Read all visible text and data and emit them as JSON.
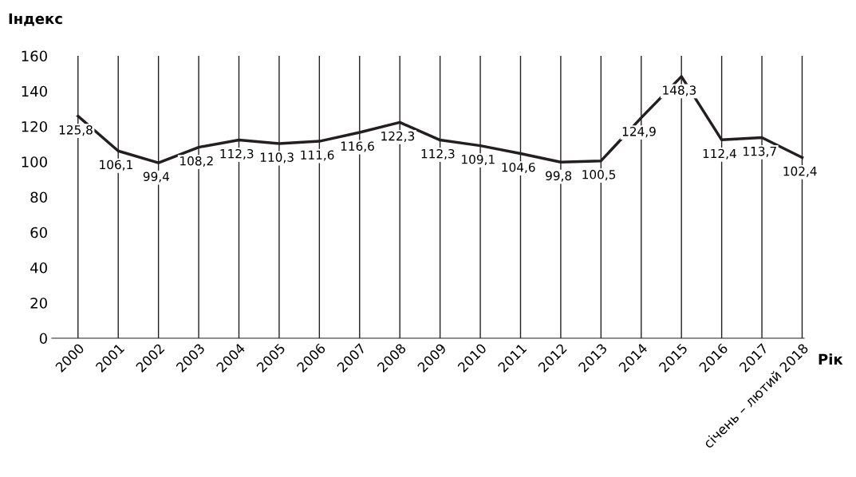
{
  "chart_data": {
    "type": "line",
    "ylabel": "Індекс",
    "xlabel": "Рік",
    "categories": [
      "2000",
      "2001",
      "2002",
      "2003",
      "2004",
      "2005",
      "2006",
      "2007",
      "2008",
      "2009",
      "2010",
      "2011",
      "2012",
      "2013",
      "2014",
      "2015",
      "2016",
      "2017",
      "січень – лютий 2018"
    ],
    "series": [
      {
        "color": "#231f20",
        "values": [
          125.8,
          106.1,
          99.4,
          108.2,
          112.3,
          110.3,
          111.6,
          116.6,
          122.3,
          112.3,
          109.1,
          104.6,
          99.8,
          100.5,
          124.9,
          148.3,
          112.4,
          113.7,
          102.4
        ],
        "value_labels": [
          "125,8",
          "106,1",
          "99,4",
          "108,2",
          "112,3",
          "110,3",
          "111,6",
          "116,6",
          "122,3",
          "112,3",
          "109,1",
          "104,6",
          "99,8",
          "100,5",
          "124,9",
          "148,3",
          "112,4",
          "113,7",
          "102,4"
        ]
      }
    ],
    "ylim": [
      0,
      160
    ],
    "yticks": [
      0,
      20,
      40,
      60,
      80,
      100,
      120,
      140,
      160
    ],
    "grid": "x",
    "marker": "none",
    "line_style": "solid",
    "legend": false
  }
}
